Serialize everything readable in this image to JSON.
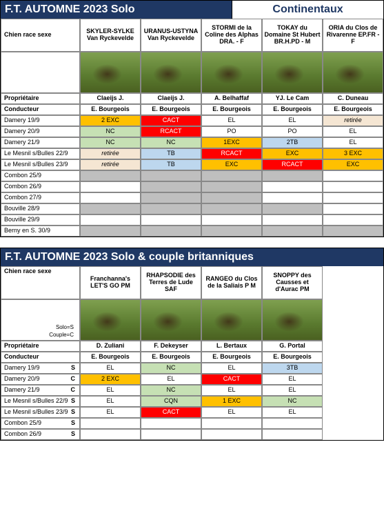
{
  "section1": {
    "title_left": "F.T. AUTOMNE 2023 Solo",
    "title_right": "Continentaux",
    "row_header_label": "Chien race sexe",
    "prop_label": "Propriétaire",
    "cond_label": "Conducteur",
    "dogs": [
      {
        "name": "SKYLER-SYLKE Van Ryckevelde",
        "owner": "Claeijs J.",
        "cond": "E. Bourgeois"
      },
      {
        "name": "URANUS-USTYNA Van Ryckevelde",
        "owner": "Claeijs J.",
        "cond": "E. Bourgeois"
      },
      {
        "name": "STORMI de la Coline des Alphas DRA. - F",
        "owner": "A. Belhaffaf",
        "cond": "E. Bourgeois"
      },
      {
        "name": "TOKAY du Domaine St Hubert BR.H.PD - M",
        "owner": "YJ. Le Cam",
        "cond": "E. Bourgeois"
      },
      {
        "name": "ORIA du Clos de Rivarenne EP.FR - F",
        "owner": "C. Duneau",
        "cond": "E. Bourgeois"
      }
    ],
    "events": [
      {
        "label": "Damery 19/9",
        "cells": [
          {
            "t": "2 EXC",
            "c": "orange"
          },
          {
            "t": "CACT",
            "c": "red"
          },
          {
            "t": "EL",
            "c": "plain"
          },
          {
            "t": "EL",
            "c": "plain"
          },
          {
            "t": "retirée",
            "c": "lightstripe italic"
          }
        ]
      },
      {
        "label": "Damery 20/9",
        "cells": [
          {
            "t": "NC",
            "c": "green"
          },
          {
            "t": "RCACT",
            "c": "red"
          },
          {
            "t": "PO",
            "c": "plain"
          },
          {
            "t": "PO",
            "c": "plain"
          },
          {
            "t": "EL",
            "c": "plain"
          }
        ]
      },
      {
        "label": "Damery 21/9",
        "cells": [
          {
            "t": "NC",
            "c": "green"
          },
          {
            "t": "NC",
            "c": "green"
          },
          {
            "t": "1EXC",
            "c": "orange"
          },
          {
            "t": "2TB",
            "c": "blue"
          },
          {
            "t": "EL",
            "c": "plain"
          }
        ]
      },
      {
        "label": "Le Mesnil s/Bulles 22/9",
        "cells": [
          {
            "t": "retirée",
            "c": "lightstripe italic"
          },
          {
            "t": "TB",
            "c": "blue"
          },
          {
            "t": "RCACT",
            "c": "red"
          },
          {
            "t": "EXC",
            "c": "orange"
          },
          {
            "t": "3 EXC",
            "c": "orange"
          }
        ]
      },
      {
        "label": "Le Mesnil s/Bulles 23/9",
        "cells": [
          {
            "t": "retirée",
            "c": "lightstripe italic"
          },
          {
            "t": "TB",
            "c": "blue"
          },
          {
            "t": "EXC",
            "c": "orange"
          },
          {
            "t": "RCACT",
            "c": "red"
          },
          {
            "t": "EXC",
            "c": "orange"
          }
        ]
      },
      {
        "label": "Combon 25/9",
        "cells": [
          {
            "t": "",
            "c": "grey"
          },
          {
            "t": "",
            "c": "grey"
          },
          {
            "t": "",
            "c": "grey"
          },
          {
            "t": "",
            "c": "grey"
          },
          {
            "t": "",
            "c": "plain"
          }
        ]
      },
      {
        "label": "Combon 26/9",
        "cells": [
          {
            "t": "",
            "c": "plain"
          },
          {
            "t": "",
            "c": "grey"
          },
          {
            "t": "",
            "c": "grey"
          },
          {
            "t": "",
            "c": "plain"
          },
          {
            "t": "",
            "c": "plain"
          }
        ]
      },
      {
        "label": "Combon 27/9",
        "cells": [
          {
            "t": "",
            "c": "plain"
          },
          {
            "t": "",
            "c": "grey"
          },
          {
            "t": "",
            "c": "grey"
          },
          {
            "t": "",
            "c": "plain"
          },
          {
            "t": "",
            "c": "plain"
          }
        ]
      },
      {
        "label": "Bouville 28/9",
        "cells": [
          {
            "t": "",
            "c": "grey"
          },
          {
            "t": "",
            "c": "grey"
          },
          {
            "t": "",
            "c": "grey"
          },
          {
            "t": "",
            "c": "grey"
          },
          {
            "t": "",
            "c": "plain"
          }
        ]
      },
      {
        "label": "Bouville 29/9",
        "cells": [
          {
            "t": "",
            "c": "plain"
          },
          {
            "t": "",
            "c": "plain"
          },
          {
            "t": "",
            "c": "plain"
          },
          {
            "t": "",
            "c": "plain"
          },
          {
            "t": "",
            "c": "plain"
          }
        ]
      },
      {
        "label": "Berny en S. 30/9",
        "cells": [
          {
            "t": "",
            "c": "grey"
          },
          {
            "t": "",
            "c": "grey"
          },
          {
            "t": "",
            "c": "grey"
          },
          {
            "t": "",
            "c": "grey"
          },
          {
            "t": "",
            "c": "grey"
          }
        ]
      }
    ]
  },
  "section2": {
    "title": "F.T.  AUTOMNE 2023  Solo & couple britanniques",
    "row_header_label": "Chien race sexe",
    "legend1": "Solo=S",
    "legend2": "Couple=C",
    "prop_label": "Propriétaire",
    "cond_label": "Conducteur",
    "dogs": [
      {
        "name": "Franchanna's LET'S GO PM",
        "owner": "D. Zuliani",
        "cond": "E. Bourgeois"
      },
      {
        "name": "RHAPSODIE des Terres de Lude SAF",
        "owner": "F. Dekeyser",
        "cond": "E. Bourgeois"
      },
      {
        "name": "RANGEO du Clos de la Saliais P M",
        "owner": "L. Bertaux",
        "cond": "E. Bourgeois"
      },
      {
        "name": "SNOPPY des Causses et d'Aurac PM",
        "owner": "G. Portal",
        "cond": "E. Bourgeois"
      }
    ],
    "events": [
      {
        "label": "Damery 19/9",
        "tag": "S",
        "cells": [
          {
            "t": "EL",
            "c": "plain"
          },
          {
            "t": "NC",
            "c": "green"
          },
          {
            "t": "EL",
            "c": "plain"
          },
          {
            "t": "3TB",
            "c": "blue"
          }
        ]
      },
      {
        "label": "Damery 20/9",
        "tag": "C",
        "cells": [
          {
            "t": "2 EXC",
            "c": "orange"
          },
          {
            "t": "EL",
            "c": "plain"
          },
          {
            "t": "CACT",
            "c": "red"
          },
          {
            "t": "EL",
            "c": "plain"
          }
        ]
      },
      {
        "label": "Damery 21/9",
        "tag": "C",
        "cells": [
          {
            "t": "EL",
            "c": "plain"
          },
          {
            "t": "NC",
            "c": "green"
          },
          {
            "t": "EL",
            "c": "plain"
          },
          {
            "t": "EL",
            "c": "plain"
          }
        ]
      },
      {
        "label": "Le Mesnil s/Bulles 22/9",
        "tag": "S",
        "cells": [
          {
            "t": "EL",
            "c": "plain"
          },
          {
            "t": "CQN",
            "c": "green"
          },
          {
            "t": "1 EXC",
            "c": "orange"
          },
          {
            "t": "NC",
            "c": "green"
          }
        ]
      },
      {
        "label": "Le Mesnil s/Bulles 23/9",
        "tag": "S",
        "cells": [
          {
            "t": "EL",
            "c": "plain"
          },
          {
            "t": "CACT",
            "c": "red"
          },
          {
            "t": "EL",
            "c": "plain"
          },
          {
            "t": "EL",
            "c": "plain"
          }
        ]
      },
      {
        "label": "Combon 25/9",
        "tag": "S",
        "cells": [
          {
            "t": "",
            "c": "plain"
          },
          {
            "t": "",
            "c": "plain"
          },
          {
            "t": "",
            "c": "plain"
          },
          {
            "t": "",
            "c": "plain"
          }
        ]
      },
      {
        "label": "Combon 26/9",
        "tag": "S",
        "cells": [
          {
            "t": "",
            "c": "plain"
          },
          {
            "t": "",
            "c": "plain"
          },
          {
            "t": "",
            "c": "plain"
          },
          {
            "t": "",
            "c": "plain"
          }
        ]
      }
    ]
  }
}
